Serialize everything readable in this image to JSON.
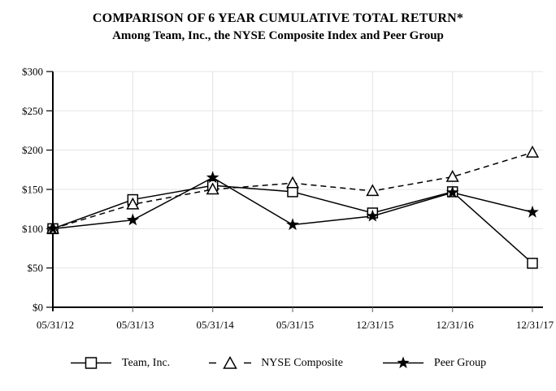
{
  "title": "COMPARISON OF 6 YEAR CUMULATIVE TOTAL RETURN*",
  "subtitle": "Among Team, Inc., the NYSE Composite Index and Peer Group",
  "colors": {
    "ink": "#000000",
    "grid": "#e4e4e4",
    "x_tick": "#777777",
    "background": "#ffffff"
  },
  "chart_data": {
    "type": "line",
    "title": "COMPARISON OF 6 YEAR CUMULATIVE TOTAL RETURN*",
    "subtitle": "Among Team, Inc., the NYSE Composite Index and Peer Group",
    "categories": [
      "05/31/12",
      "05/31/13",
      "05/31/14",
      "05/31/15",
      "12/31/15",
      "12/31/16",
      "12/31/17"
    ],
    "series": [
      {
        "name": "Team, Inc.",
        "marker": "square",
        "line_style": "solid",
        "values": [
          100,
          137,
          155,
          147,
          120,
          147,
          56
        ]
      },
      {
        "name": "NYSE Composite",
        "marker": "triangle",
        "line_style": "dashed",
        "values": [
          100,
          131,
          150,
          158,
          148,
          166,
          197
        ]
      },
      {
        "name": "Peer Group",
        "marker": "star",
        "line_style": "solid",
        "values": [
          100,
          111,
          165,
          105,
          116,
          146,
          121
        ]
      }
    ],
    "y_ticks": [
      "$0",
      "$50",
      "$100",
      "$150",
      "$200",
      "$250",
      "$300"
    ],
    "ylim": [
      0,
      300
    ],
    "xlabel": "",
    "ylabel": "",
    "grid": true,
    "legend_position": "bottom"
  }
}
